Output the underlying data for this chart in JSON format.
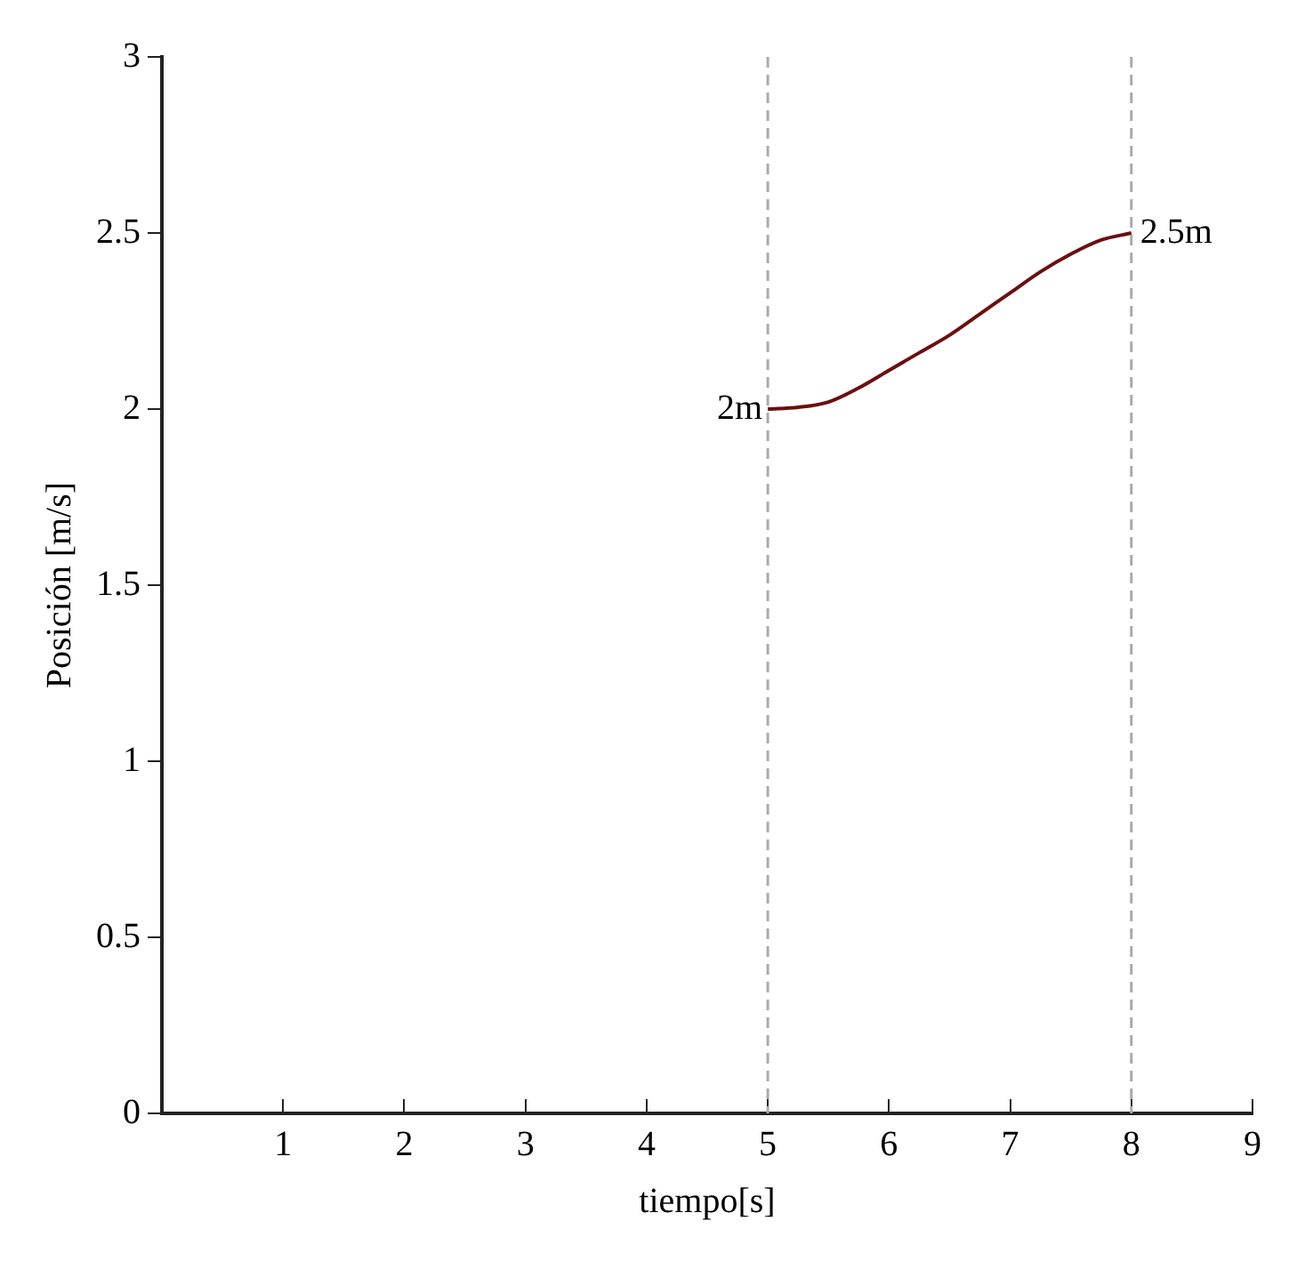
{
  "chart_data": {
    "type": "line",
    "xlabel": "tiempo[s]",
    "ylabel": "Posición [m/s]",
    "series": [
      {
        "color": "#6b0f0f",
        "x": [
          5,
          5.25,
          5.5,
          5.75,
          6,
          6.25,
          6.5,
          6.75,
          7,
          7.25,
          7.5,
          7.75,
          8
        ],
        "values": [
          2,
          2.005,
          2.02,
          2.06,
          2.11,
          2.16,
          2.21,
          2.27,
          2.33,
          2.39,
          2.44,
          2.48,
          2.5
        ]
      }
    ],
    "xlim": [
      0,
      9
    ],
    "xticks": [
      1,
      2,
      3,
      4,
      5,
      6,
      7,
      8,
      9
    ],
    "ylim": [
      0,
      3
    ],
    "yticks": [
      0,
      0.5,
      1,
      1.5,
      2,
      2.5,
      3
    ],
    "ref_lines": [
      {
        "axis": "x",
        "value": 5,
        "color": "#aaaaaa",
        "line_style": "dashed"
      },
      {
        "axis": "x",
        "value": 8,
        "color": "#aaaaaa",
        "line_style": "dashed"
      }
    ],
    "annotations": [
      {
        "text": "2m",
        "x": 5,
        "y": 2
      },
      {
        "text": "2.5m",
        "x": 8,
        "y": 2.5
      }
    ],
    "grid": false,
    "legend": false,
    "marker": "none",
    "line_style": "solid"
  }
}
